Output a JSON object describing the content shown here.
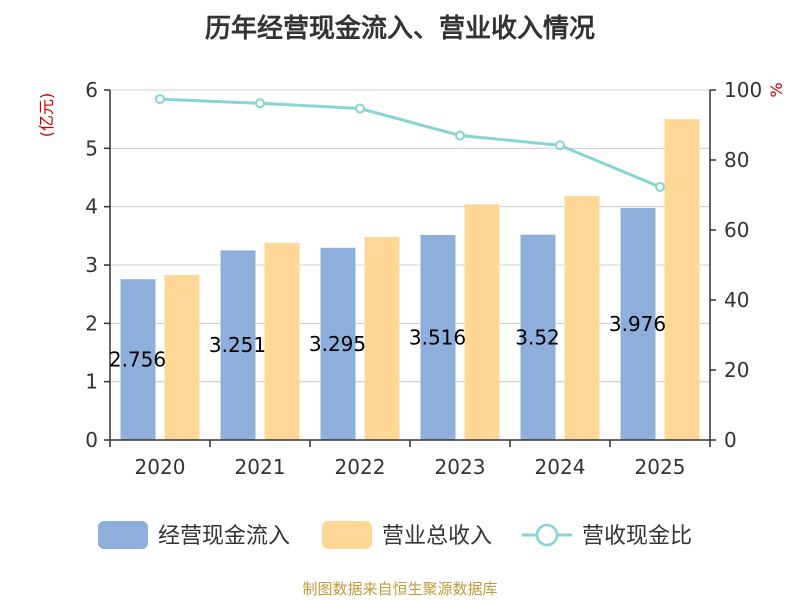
{
  "chart_data": {
    "type": "bar",
    "title": "历年经营现金流入、营业收入情况",
    "categories": [
      "2020",
      "2021",
      "2022",
      "2023",
      "2024",
      "2025"
    ],
    "series": [
      {
        "name": "经营现金流入",
        "axis": "left",
        "kind": "bar",
        "color": "#8eaedb",
        "values": [
          2.756,
          3.251,
          3.295,
          3.516,
          3.52,
          3.976
        ],
        "labels": [
          "2.756",
          "3.251",
          "3.295",
          "3.516",
          "3.52",
          "3.976"
        ]
      },
      {
        "name": "营业总收入",
        "axis": "left",
        "kind": "bar",
        "color": "#fed797",
        "values": [
          2.83,
          3.38,
          3.48,
          4.04,
          4.18,
          5.5
        ]
      },
      {
        "name": "营收现金比",
        "axis": "right",
        "kind": "line",
        "color": "#86d4d4",
        "values": [
          97.4,
          96.2,
          94.7,
          87.0,
          84.2,
          72.3
        ]
      }
    ],
    "y_left": {
      "label": "(亿元)",
      "ylim": [
        0,
        6
      ],
      "ticks": [
        "0",
        "1",
        "2",
        "3",
        "4",
        "5",
        "6"
      ]
    },
    "y_right": {
      "label": "%",
      "ylim": [
        0,
        100
      ],
      "ticks": [
        "0",
        "20",
        "40",
        "60",
        "80",
        "100"
      ]
    },
    "grid": true,
    "legend_position": "bottom"
  },
  "footer": {
    "source": "制图数据来自恒生聚源数据库"
  }
}
